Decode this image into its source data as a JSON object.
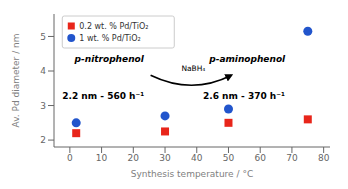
{
  "chart_data": {
    "type": "scatter",
    "xlabel": "Synthesis temperature / °C",
    "ylabel": "Av. Pd diameter / nm",
    "series": [
      {
        "name": "0.2 wt. % Pd/TiO₂",
        "color": "#e8251a",
        "marker": "square",
        "x": [
          2,
          30,
          50,
          75
        ],
        "values": [
          2.2,
          2.25,
          2.5,
          2.6
        ]
      },
      {
        "name": "1 wt. % Pd/TiO₂",
        "color": "#2255cc",
        "marker": "circle",
        "x": [
          2,
          30,
          50,
          75
        ],
        "values": [
          2.5,
          2.7,
          2.9,
          5.15
        ]
      }
    ],
    "xlim": [
      -5,
      82
    ],
    "ylim": [
      1.8,
      5.65
    ],
    "xticks": [
      0,
      10,
      20,
      30,
      40,
      50,
      60,
      70,
      80
    ],
    "yticks": [
      2,
      3,
      4,
      5
    ],
    "grid": false,
    "legend": "upper left",
    "annotations": [
      "p-nitrophenol",
      "p-aminophenol",
      "NaBH₄",
      "2.2 nm - 560 h⁻¹",
      "2.6 nm - 370 h⁻¹"
    ]
  }
}
